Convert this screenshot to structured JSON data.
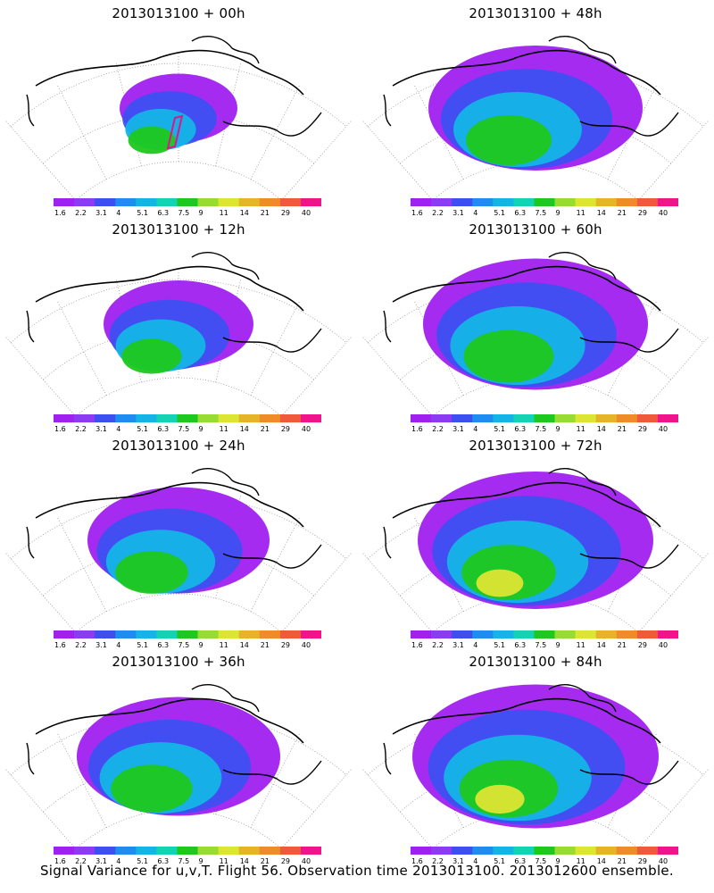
{
  "colorbar": {
    "ticks": [
      "1.6",
      "2.2",
      "3.1",
      "4",
      "5.1",
      "6.3",
      "7.5",
      "9",
      "11",
      "14",
      "21",
      "29",
      "40"
    ],
    "colors": [
      "#a020f0",
      "#8c3cf0",
      "#3c50f0",
      "#1e8cf0",
      "#14b4e6",
      "#14d2b4",
      "#1ec81e",
      "#96dc32",
      "#dce632",
      "#e6b428",
      "#f08c28",
      "#f05a3c",
      "#f0148c"
    ]
  },
  "panels": [
    {
      "title": "2013013100 + 00h",
      "intensity": 0.45,
      "spread": 0.55,
      "box": true
    },
    {
      "title": "2013013100 + 48h",
      "intensity": 0.55,
      "spread": 1.0,
      "box": false
    },
    {
      "title": "2013013100 + 12h",
      "intensity": 0.5,
      "spread": 0.7,
      "box": false
    },
    {
      "title": "2013013100 + 60h",
      "intensity": 0.6,
      "spread": 1.05,
      "box": false
    },
    {
      "title": "2013013100 + 24h",
      "intensity": 0.55,
      "spread": 0.85,
      "box": false
    },
    {
      "title": "2013013100 + 72h",
      "intensity": 0.7,
      "spread": 1.1,
      "box": false
    },
    {
      "title": "2013013100 + 36h",
      "intensity": 0.55,
      "spread": 0.95,
      "box": false
    },
    {
      "title": "2013013100 + 84h",
      "intensity": 0.75,
      "spread": 1.15,
      "box": false
    }
  ],
  "chart_data": {
    "type": "heatmap",
    "title": "Signal Variance for u,v,T. Flight 56. Observation time 2013013100. 2013012600 ensemble.",
    "lead_times": [
      "00h",
      "48h",
      "12h",
      "60h",
      "24h",
      "72h",
      "36h",
      "84h"
    ],
    "colorbar_levels": [
      1.6,
      2.2,
      3.1,
      4,
      5.1,
      6.3,
      7.5,
      9,
      11,
      14,
      21,
      29,
      40
    ]
  },
  "footer": "Signal Variance for u,v,T. Flight 56. Observation time 2013013100. 2013012600 ensemble."
}
